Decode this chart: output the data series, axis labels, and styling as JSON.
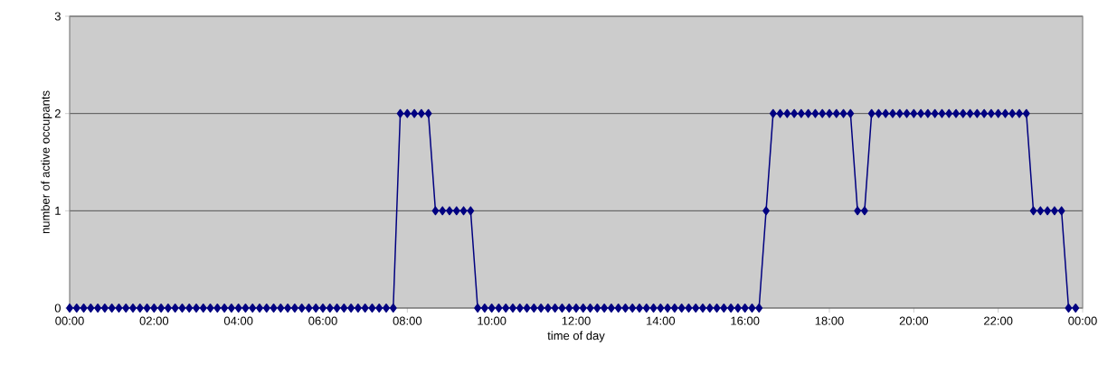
{
  "chart_data": {
    "type": "line",
    "xlabel": "time of day",
    "ylabel": "number of active occupants",
    "x": [
      0,
      0.1667,
      0.3333,
      0.5,
      0.6667,
      0.8333,
      1,
      1.1667,
      1.3333,
      1.5,
      1.6667,
      1.8333,
      2,
      2.1667,
      2.3333,
      2.5,
      2.6667,
      2.8333,
      3,
      3.1667,
      3.3333,
      3.5,
      3.6667,
      3.8333,
      4,
      4.1667,
      4.3333,
      4.5,
      4.6667,
      4.8333,
      5,
      5.1667,
      5.3333,
      5.5,
      5.6667,
      5.8333,
      6,
      6.1667,
      6.3333,
      6.5,
      6.6667,
      6.8333,
      7,
      7.1667,
      7.3333,
      7.5,
      7.6667,
      7.8333,
      8,
      8.1667,
      8.3333,
      8.5,
      8.6667,
      8.8333,
      9,
      9.1667,
      9.3333,
      9.5,
      9.6667,
      9.8333,
      10,
      10.1667,
      10.3333,
      10.5,
      10.6667,
      10.8333,
      11,
      11.1667,
      11.3333,
      11.5,
      11.6667,
      11.8333,
      12,
      12.1667,
      12.3333,
      12.5,
      12.6667,
      12.8333,
      13,
      13.1667,
      13.3333,
      13.5,
      13.6667,
      13.8333,
      14,
      14.1667,
      14.3333,
      14.5,
      14.6667,
      14.8333,
      15,
      15.1667,
      15.3333,
      15.5,
      15.6667,
      15.8333,
      16,
      16.1667,
      16.3333,
      16.5,
      16.6667,
      16.8333,
      17,
      17.1667,
      17.3333,
      17.5,
      17.6667,
      17.8333,
      18,
      18.1667,
      18.3333,
      18.5,
      18.6667,
      18.8333,
      19,
      19.1667,
      19.3333,
      19.5,
      19.6667,
      19.8333,
      20,
      20.1667,
      20.3333,
      20.5,
      20.6667,
      20.8333,
      21,
      21.1667,
      21.3333,
      21.5,
      21.6667,
      21.8333,
      22,
      22.1667,
      22.3333,
      22.5,
      22.6667,
      22.8333,
      23,
      23.1667,
      23.3333,
      23.5,
      23.6667,
      23.8333
    ],
    "values": [
      0,
      0,
      0,
      0,
      0,
      0,
      0,
      0,
      0,
      0,
      0,
      0,
      0,
      0,
      0,
      0,
      0,
      0,
      0,
      0,
      0,
      0,
      0,
      0,
      0,
      0,
      0,
      0,
      0,
      0,
      0,
      0,
      0,
      0,
      0,
      0,
      0,
      0,
      0,
      0,
      0,
      0,
      0,
      0,
      0,
      0,
      0,
      2,
      2,
      2,
      2,
      2,
      1,
      1,
      1,
      1,
      1,
      1,
      0,
      0,
      0,
      0,
      0,
      0,
      0,
      0,
      0,
      0,
      0,
      0,
      0,
      0,
      0,
      0,
      0,
      0,
      0,
      0,
      0,
      0,
      0,
      0,
      0,
      0,
      0,
      0,
      0,
      0,
      0,
      0,
      0,
      0,
      0,
      0,
      0,
      0,
      0,
      0,
      0,
      1,
      2,
      2,
      2,
      2,
      2,
      2,
      2,
      2,
      2,
      2,
      2,
      2,
      1,
      1,
      2,
      2,
      2,
      2,
      2,
      2,
      2,
      2,
      2,
      2,
      2,
      2,
      2,
      2,
      2,
      2,
      2,
      2,
      2,
      2,
      2,
      2,
      2,
      1,
      1,
      1,
      1,
      1,
      0,
      0
    ],
    "color": "#000080",
    "marker": "diamond",
    "line_style": "solid",
    "grid": "y",
    "xlim": [
      0,
      24
    ],
    "xticks": [
      {
        "value": 0,
        "label": "00:00"
      },
      {
        "value": 2,
        "label": "02:00"
      },
      {
        "value": 4,
        "label": "04:00"
      },
      {
        "value": 6,
        "label": "06:00"
      },
      {
        "value": 8,
        "label": "08:00"
      },
      {
        "value": 10,
        "label": "10:00"
      },
      {
        "value": 12,
        "label": "12:00"
      },
      {
        "value": 14,
        "label": "14:00"
      },
      {
        "value": 16,
        "label": "16:00"
      },
      {
        "value": 18,
        "label": "18:00"
      },
      {
        "value": 20,
        "label": "20:00"
      },
      {
        "value": 22,
        "label": "22:00"
      },
      {
        "value": 24,
        "label": "00:00"
      }
    ],
    "ylim": [
      0,
      3
    ],
    "yticks": [
      0,
      1,
      2,
      3
    ]
  }
}
